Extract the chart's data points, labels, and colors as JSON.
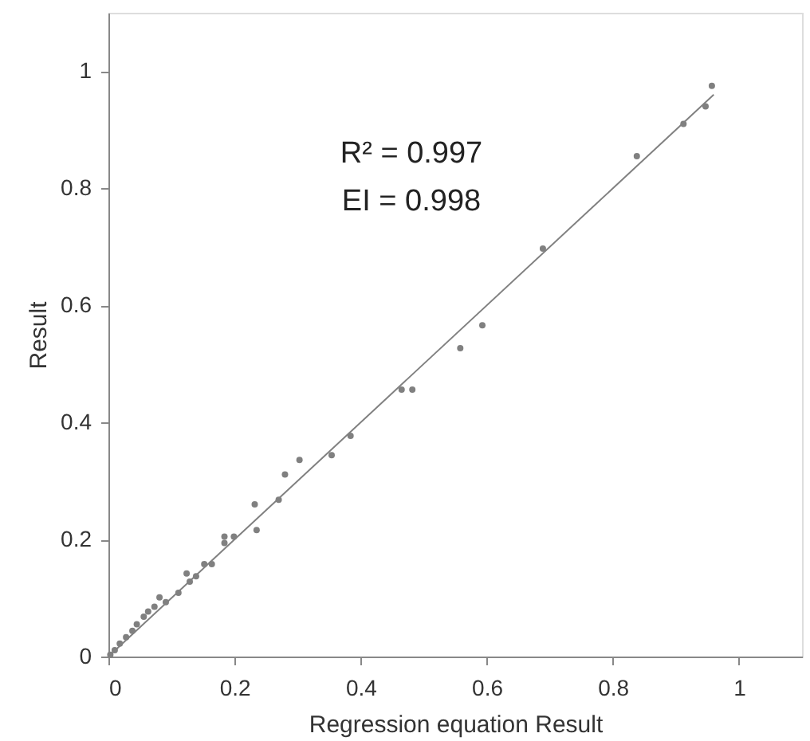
{
  "chart_data": {
    "type": "scatter",
    "xlabel": "Regression equation  Result",
    "ylabel": "Result",
    "xlim": [
      0,
      1.1
    ],
    "ylim": [
      0,
      1.1
    ],
    "xticks": [
      0,
      0.2,
      0.4,
      0.6,
      0.8,
      1
    ],
    "yticks": [
      0,
      0.2,
      0.4,
      0.6,
      0.8,
      1
    ],
    "grid": false,
    "marker": "circle",
    "annotations": [
      "R² = 0.997",
      "EI = 0.998"
    ],
    "series": [
      {
        "color": "#808080",
        "x": [
          0.957,
          0.947,
          0.912,
          0.838,
          0.689,
          0.593,
          0.558,
          0.482,
          0.465,
          0.384,
          0.354,
          0.303,
          0.28,
          0.27,
          0.235,
          0.232,
          0.199,
          0.184,
          0.184,
          0.164,
          0.152,
          0.139,
          0.129,
          0.124,
          0.111,
          0.081,
          0.091,
          0.073,
          0.063,
          0.056,
          0.045,
          0.038,
          0.028,
          0.018,
          0.01,
          0.003
        ],
        "values": [
          0.975,
          0.94,
          0.91,
          0.855,
          0.697,
          0.566,
          0.527,
          0.456,
          0.456,
          0.377,
          0.344,
          0.336,
          0.311,
          0.268,
          0.216,
          0.26,
          0.205,
          0.205,
          0.194,
          0.158,
          0.158,
          0.137,
          0.128,
          0.142,
          0.109,
          0.101,
          0.093,
          0.085,
          0.077,
          0.068,
          0.055,
          0.044,
          0.033,
          0.022,
          0.011,
          0.003
        ]
      },
      {
        "type": "line",
        "marker": "none",
        "color": "#808080",
        "line_style": "solid",
        "x": [
          0,
          0.96
        ],
        "values": [
          0,
          0.96
        ]
      }
    ]
  }
}
